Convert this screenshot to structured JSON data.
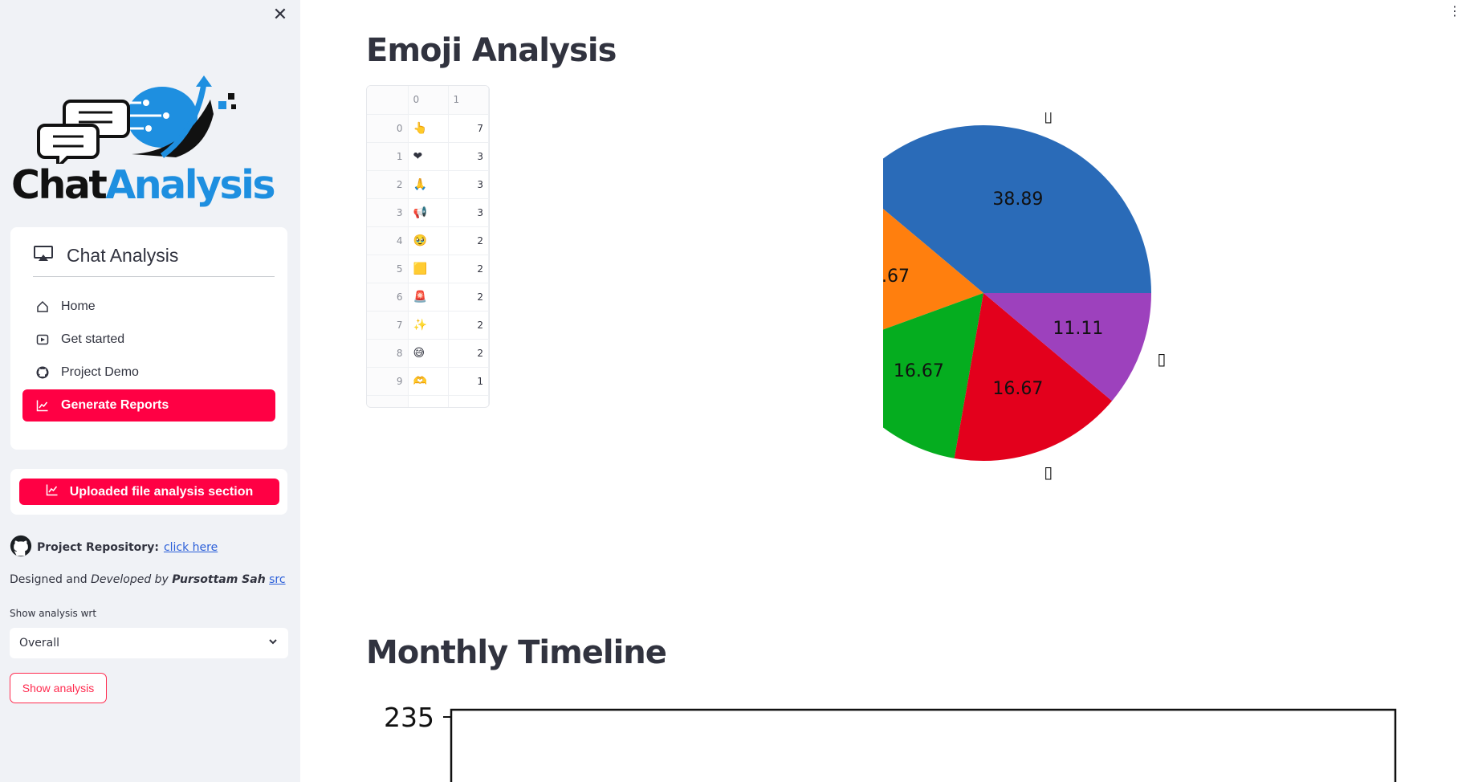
{
  "sidebar": {
    "close_icon": "✕",
    "logo": {
      "word1": "Chat",
      "word2": "Analysis"
    },
    "menu": {
      "title": "Chat Analysis",
      "items": [
        {
          "label": "Home",
          "icon": "home-icon"
        },
        {
          "label": "Get started",
          "icon": "play-icon"
        },
        {
          "label": "Project Demo",
          "icon": "github-icon"
        },
        {
          "label": "Generate Reports",
          "icon": "chart-line-icon",
          "active": true
        }
      ]
    },
    "upload_button": "Uploaded file analysis section",
    "repo": {
      "label": "Project Repository:",
      "link": "click here"
    },
    "designed": {
      "prefix": "Designed and ",
      "developed": "Developed by ",
      "author": "Pursottam Sah",
      "src": "src"
    },
    "select": {
      "label": "Show analysis wrt",
      "value": "Overall"
    },
    "show_button": "Show analysis"
  },
  "main": {
    "emoji_title": "Emoji Analysis",
    "monthly_title": "Monthly Timeline",
    "dataframe": {
      "columns": [
        "0",
        "1"
      ],
      "rows": [
        {
          "index": "0",
          "emoji": "👆",
          "count": "7"
        },
        {
          "index": "1",
          "emoji": "❤",
          "count": "3"
        },
        {
          "index": "2",
          "emoji": "🙏",
          "count": "3"
        },
        {
          "index": "3",
          "emoji": "📢",
          "count": "3"
        },
        {
          "index": "4",
          "emoji": "🥹",
          "count": "2"
        },
        {
          "index": "5",
          "emoji": "🟨",
          "count": "2"
        },
        {
          "index": "6",
          "emoji": "🚨",
          "count": "2"
        },
        {
          "index": "7",
          "emoji": "✨",
          "count": "2"
        },
        {
          "index": "8",
          "emoji": "😅",
          "count": "2"
        },
        {
          "index": "9",
          "emoji": "🫶",
          "count": "1"
        }
      ]
    },
    "timeline": {
      "ytick_top": "235"
    }
  },
  "chart_data": {
    "type": "pie",
    "slices": [
      {
        "label": "▯",
        "value": 38.89,
        "color": "#2a6bb8"
      },
      {
        "label": "❤",
        "value": 16.67,
        "color": "#ff7f0e"
      },
      {
        "label": "▯",
        "value": 16.67,
        "color": "#05ad1f"
      },
      {
        "label": "▯",
        "value": 16.67,
        "color": "#e3001c"
      },
      {
        "label": "▯",
        "value": 11.11,
        "color": "#9d41bd"
      }
    ],
    "value_labels": [
      "38.89",
      "16.67",
      "16.67",
      "16.67",
      "11.11"
    ]
  },
  "colors": {
    "accent": "#ff0044",
    "sidebar_bg": "#f0f2f6"
  }
}
